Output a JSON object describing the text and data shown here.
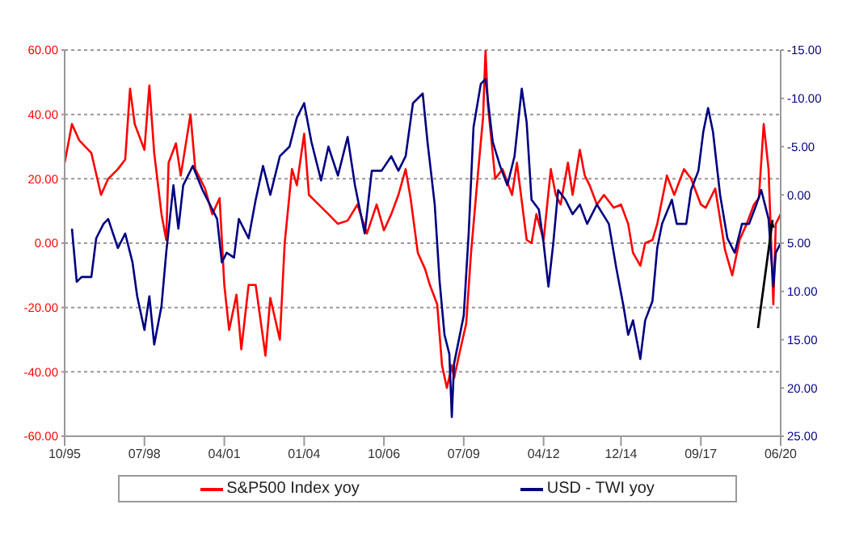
{
  "chart_data": {
    "type": "line",
    "series": [
      {
        "name": "S&P500 Index yoy",
        "color": "#ff0000",
        "x": [
          "1995-10",
          "1996-01",
          "1996-04",
          "1996-09",
          "1997-01",
          "1997-04",
          "1997-08",
          "1997-11",
          "1998-01",
          "1998-03",
          "1998-07",
          "1998-09",
          "1998-11",
          "1999-02",
          "1999-04",
          "1999-05",
          "1999-08",
          "1999-10",
          "2000-02",
          "2000-04",
          "2000-08",
          "2000-11",
          "2001-02",
          "2001-04",
          "2001-06",
          "2001-09",
          "2001-11",
          "2002-02",
          "2002-05",
          "2002-09",
          "2002-11",
          "2003-03",
          "2003-05",
          "2003-08",
          "2003-10",
          "2004-01",
          "2004-03",
          "2004-07",
          "2004-11",
          "2005-03",
          "2005-07",
          "2005-11",
          "2006-03",
          "2006-07",
          "2006-10",
          "2007-01",
          "2007-04",
          "2007-07",
          "2007-09",
          "2007-12",
          "2008-03",
          "2008-05",
          "2008-08",
          "2008-10",
          "2008-12",
          "2009-02",
          "2009-03",
          "2009-05",
          "2009-08",
          "2009-10",
          "2010-01",
          "2010-03",
          "2010-04",
          "2010-05",
          "2010-08",
          "2010-11",
          "2011-03",
          "2011-05",
          "2011-09",
          "2011-11",
          "2012-01",
          "2012-04",
          "2012-07",
          "2012-09",
          "2012-11",
          "2013-02",
          "2013-04",
          "2013-07",
          "2013-09",
          "2013-11",
          "2014-02",
          "2014-05",
          "2014-09",
          "2014-12",
          "2015-03",
          "2015-05",
          "2015-08",
          "2015-10",
          "2016-01",
          "2016-03",
          "2016-07",
          "2016-10",
          "2017-02",
          "2017-05",
          "2017-09",
          "2017-11",
          "2018-03",
          "2018-07",
          "2018-10",
          "2019-01",
          "2019-04",
          "2019-07",
          "2019-09",
          "2019-11",
          "2020-01",
          "2020-03",
          "2020-04",
          "2020-06"
        ],
        "values": [
          25,
          37,
          32,
          28,
          15,
          20,
          23,
          26,
          48,
          37,
          29,
          49,
          28,
          9,
          1,
          25,
          31,
          21,
          40,
          23,
          17,
          9,
          14,
          -13,
          -27,
          -16,
          -33,
          -13,
          -13,
          -35,
          -17,
          -30,
          0,
          23,
          18,
          34,
          15,
          12,
          9,
          6,
          7,
          12,
          3,
          12,
          4,
          9,
          15,
          23,
          14,
          -3,
          -8,
          -13,
          -19,
          -38,
          -45,
          -38,
          -42,
          -35,
          -25,
          -3,
          23,
          39,
          60,
          43,
          20,
          23,
          15,
          25,
          1,
          0,
          9,
          1,
          23,
          15,
          12,
          25,
          15,
          29,
          21,
          18,
          12,
          15,
          11,
          12,
          6,
          -3,
          -7,
          0,
          1,
          6,
          21,
          15,
          23,
          20,
          12,
          11,
          17,
          -2,
          -10,
          1,
          6,
          12,
          14,
          37,
          23,
          -19,
          6,
          9
        ]
      },
      {
        "name": "USD - TWI yoy",
        "color": "#000080",
        "axis": "y2",
        "x": [
          "1996-01",
          "1996-03",
          "1996-05",
          "1996-09",
          "1996-11",
          "1997-02",
          "1997-04",
          "1997-08",
          "1997-11",
          "1998-02",
          "1998-04",
          "1998-07",
          "1998-09",
          "1998-11",
          "1999-02",
          "1999-04",
          "1999-07",
          "1999-09",
          "1999-11",
          "2000-03",
          "2000-07",
          "2000-10",
          "2001-01",
          "2001-03",
          "2001-05",
          "2001-08",
          "2001-10",
          "2002-02",
          "2002-05",
          "2002-08",
          "2002-11",
          "2003-03",
          "2003-07",
          "2003-10",
          "2004-01",
          "2004-04",
          "2004-08",
          "2004-11",
          "2005-03",
          "2005-07",
          "2005-10",
          "2006-02",
          "2006-05",
          "2006-09",
          "2007-01",
          "2007-04",
          "2007-07",
          "2007-10",
          "2008-02",
          "2008-04",
          "2008-07",
          "2008-09",
          "2008-11",
          "2009-01",
          "2009-02",
          "2009-03",
          "2009-07",
          "2009-09",
          "2009-11",
          "2010-02",
          "2010-04",
          "2010-07",
          "2010-10",
          "2011-01",
          "2011-04",
          "2011-07",
          "2011-09",
          "2011-11",
          "2012-02",
          "2012-04",
          "2012-06",
          "2012-08",
          "2012-10",
          "2013-01",
          "2013-04",
          "2013-07",
          "2013-10",
          "2014-02",
          "2014-07",
          "2014-10",
          "2015-01",
          "2015-03",
          "2015-05",
          "2015-08",
          "2015-10",
          "2016-01",
          "2016-03",
          "2016-05",
          "2016-09",
          "2016-11",
          "2017-03",
          "2017-05",
          "2017-08",
          "2017-10",
          "2017-12",
          "2018-02",
          "2018-05",
          "2018-08",
          "2018-11",
          "2019-02",
          "2019-05",
          "2019-08",
          "2019-10",
          "2020-01",
          "2020-03",
          "2020-04",
          "2020-06"
        ],
        "values": [
          3.5,
          9,
          8.5,
          8.5,
          4.5,
          3,
          2.5,
          5.5,
          4,
          7,
          10.5,
          14,
          10.5,
          15.5,
          11.5,
          6,
          -1,
          3.5,
          -1,
          -3,
          -0.5,
          1,
          2.5,
          7,
          6,
          6.5,
          2.5,
          4.5,
          0.5,
          -3,
          0,
          -4,
          -5,
          -8,
          -9.5,
          -5.5,
          -1.5,
          -5,
          -2,
          -6,
          -1,
          4,
          -2.5,
          -2.5,
          -4,
          -2.5,
          -4,
          -9.5,
          -10.5,
          -5.5,
          1,
          9,
          14.5,
          16.5,
          23,
          17.5,
          12.5,
          4,
          -7,
          -11.5,
          -12,
          -5.5,
          -3,
          -1,
          -4,
          -11,
          -7.5,
          0.5,
          1.5,
          5,
          9.5,
          5,
          -0.5,
          0.5,
          2,
          1,
          3,
          1,
          3,
          7.5,
          11.5,
          14.5,
          13,
          17,
          13,
          11,
          5.5,
          3,
          0.5,
          3,
          3,
          -0.5,
          -2.5,
          -6.5,
          -9,
          -6.5,
          0,
          4.5,
          6,
          3,
          3,
          1,
          -0.5,
          2.5,
          9.5,
          6,
          5
        ]
      }
    ],
    "xlim": [
      "1995-10",
      "2020-06"
    ],
    "xticks": [
      {
        "value": "1995-10",
        "label": "10/95"
      },
      {
        "value": "1998-07",
        "label": "07/98"
      },
      {
        "value": "2001-04",
        "label": "04/01"
      },
      {
        "value": "2004-01",
        "label": "01/04"
      },
      {
        "value": "2006-10",
        "label": "10/06"
      },
      {
        "value": "2009-07",
        "label": "07/09"
      },
      {
        "value": "2012-04",
        "label": "04/12"
      },
      {
        "value": "2014-12",
        "label": "12/14"
      },
      {
        "value": "2017-09",
        "label": "09/17"
      },
      {
        "value": "2020-06",
        "label": "06/20"
      }
    ],
    "ylim": [
      -60,
      60
    ],
    "yticks": [
      {
        "value": -60,
        "label": "-60.00"
      },
      {
        "value": -40,
        "label": "-40.00"
      },
      {
        "value": -20,
        "label": "-20.00"
      },
      {
        "value": 0,
        "label": "0.00"
      },
      {
        "value": 20,
        "label": "20.00"
      },
      {
        "value": 40,
        "label": "40.00"
      },
      {
        "value": 60,
        "label": "60.00"
      }
    ],
    "y2lim": [
      25,
      -15
    ],
    "y2ticks": [
      {
        "value": -15,
        "label": "-15.00"
      },
      {
        "value": -10,
        "label": "-10.00"
      },
      {
        "value": -5,
        "label": "-5.00"
      },
      {
        "value": 0,
        "label": "0.00"
      },
      {
        "value": 5,
        "label": "5.00"
      },
      {
        "value": 10,
        "label": "10.00"
      },
      {
        "value": 15,
        "label": "15.00"
      },
      {
        "value": 20,
        "label": "20.00"
      },
      {
        "value": 25,
        "label": "25.00"
      }
    ],
    "grid": "y",
    "legend": "bottom",
    "line_style": "solid",
    "marker": "none"
  }
}
